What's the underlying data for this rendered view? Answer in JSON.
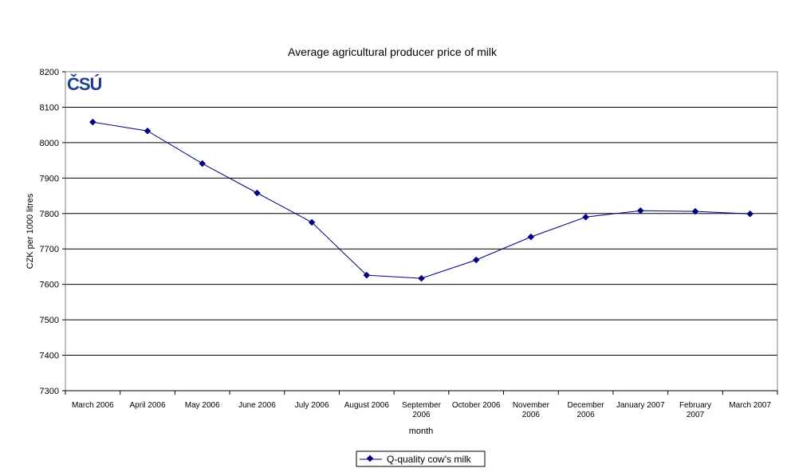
{
  "chart_data": {
    "type": "line",
    "title": "Average agricultural producer price of milk",
    "xlabel": "month",
    "ylabel": "CZK per 1000 litres",
    "ylim": [
      7300,
      8200
    ],
    "yticks": [
      7300,
      7400,
      7500,
      7600,
      7700,
      7800,
      7900,
      8000,
      8100,
      8200
    ],
    "grid": true,
    "legend_position": "bottom",
    "categories": [
      "March 2006",
      "April 2006",
      "May 2006",
      "June 2006",
      "July 2006",
      "August 2006",
      "September 2006",
      "October 2006",
      "November 2006",
      "December 2006",
      "January 2007",
      "February 2007",
      "March 2007"
    ],
    "category_lines": [
      [
        "March 2006"
      ],
      [
        "April 2006"
      ],
      [
        "May 2006"
      ],
      [
        "June 2006"
      ],
      [
        "July 2006"
      ],
      [
        "August 2006"
      ],
      [
        "September",
        "2006"
      ],
      [
        "October 2006"
      ],
      [
        "November",
        "2006"
      ],
      [
        "December",
        "2006"
      ],
      [
        "January 2007"
      ],
      [
        "February",
        "2007"
      ],
      [
        "March 2007"
      ]
    ],
    "series": [
      {
        "name": "Q-quality cow's milk",
        "color": "#000080",
        "values": [
          8058,
          8033,
          7941,
          7858,
          7775,
          7626,
          7617,
          7669,
          7734,
          7790,
          7808,
          7806,
          7799
        ]
      }
    ],
    "logo": "ČSÚ",
    "logo_color": "#1f3f8f"
  }
}
